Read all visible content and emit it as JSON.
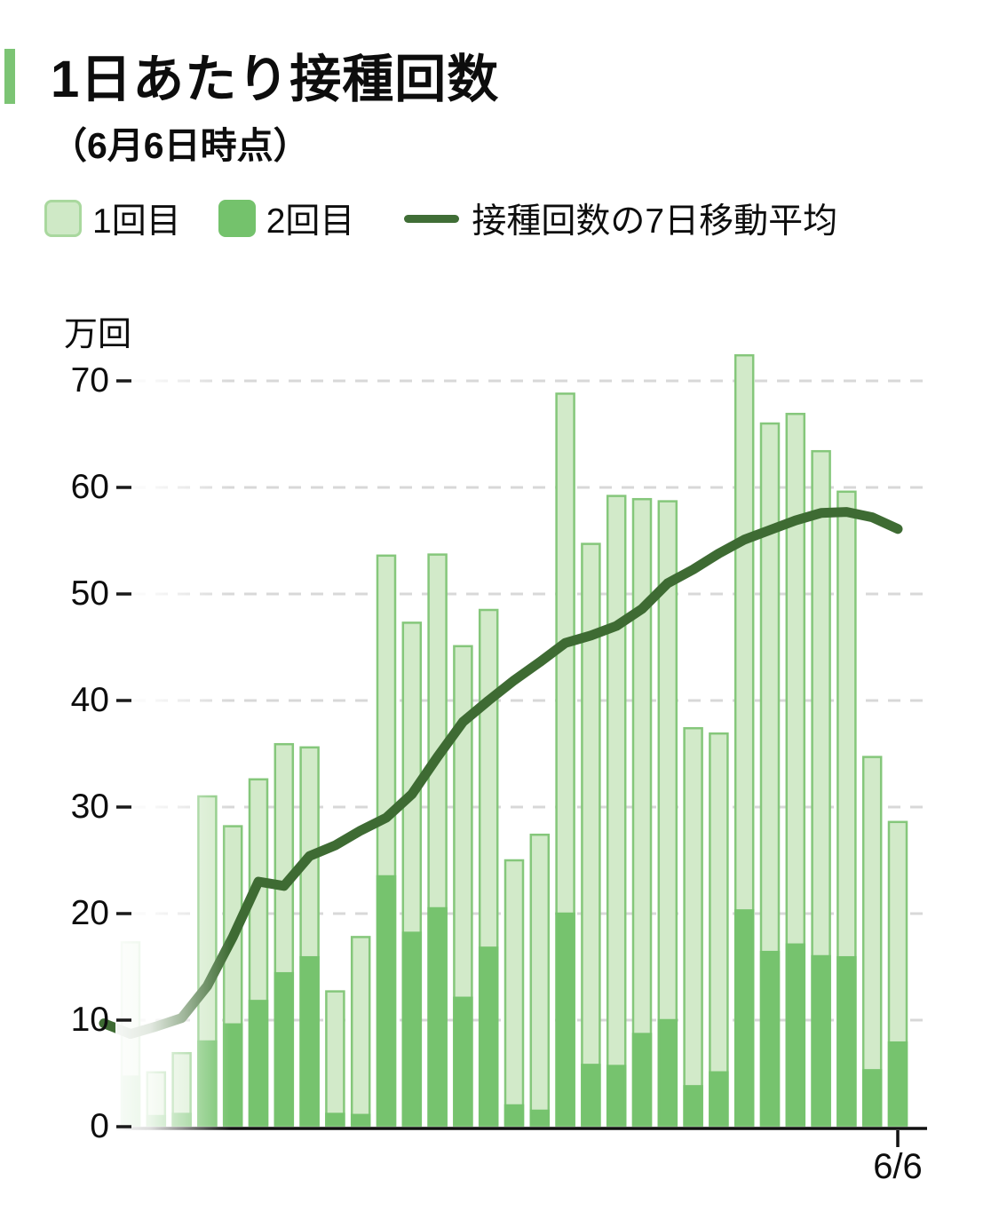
{
  "header": {
    "title": "1日あたり接種回数",
    "subtitle": "（6月6日時点）"
  },
  "legend": {
    "dose1_label": "1回目",
    "dose2_label": "2回目",
    "ma_label": "接種回数の7日移動平均"
  },
  "axis": {
    "unit_label": "万回",
    "x_end_label": "6/6",
    "yticks": [
      0,
      10,
      20,
      30,
      40,
      50,
      60,
      70
    ]
  },
  "colors": {
    "dose1_fill": "#d2eac9",
    "dose1_border": "#85c77b",
    "dose2_fill": "#76c36e",
    "ma_line": "#3e6b33",
    "accent": "#7cc474",
    "gridline": "#d8d8d8",
    "axis": "#111111"
  },
  "chart_data": {
    "type": "bar",
    "stacked": true,
    "title": "1日あたり接種回数（6月6日時点）",
    "ylabel": "万回",
    "ylim": [
      0,
      75
    ],
    "grid": "dashed horizontal",
    "legend_position": "top",
    "x_axis": {
      "n_bars": 31,
      "last_label": "6/6",
      "note": "only final day labeled"
    },
    "fade_left_edge": true,
    "series": [
      {
        "name": "1回目",
        "role": "bar-top-segment",
        "values": [
          12.6,
          4.1,
          5.7,
          23.0,
          18.6,
          20.8,
          21.5,
          19.7,
          11.5,
          16.7,
          30.1,
          29.1,
          33.2,
          33.0,
          31.7,
          23.0,
          25.9,
          48.8,
          48.9,
          53.5,
          50.2,
          48.7,
          33.6,
          31.8,
          52.1,
          49.6,
          49.8,
          47.4,
          43.7,
          29.4,
          20.7
        ]
      },
      {
        "name": "2回目",
        "role": "bar-bottom-segment",
        "values": [
          4.7,
          1.0,
          1.2,
          8.0,
          9.6,
          11.8,
          14.4,
          15.9,
          1.2,
          1.1,
          23.5,
          18.2,
          20.5,
          12.1,
          16.8,
          2.0,
          1.5,
          20.0,
          5.8,
          5.7,
          8.7,
          10.0,
          3.8,
          5.1,
          20.3,
          16.4,
          17.1,
          16.0,
          15.9,
          5.3,
          7.9
        ]
      },
      {
        "name": "接種回数の7日移動平均",
        "role": "line",
        "lead_value": 9.7,
        "values": [
          8.7,
          9.4,
          10.2,
          13.2,
          17.8,
          23.0,
          22.6,
          25.4,
          26.4,
          27.8,
          29.0,
          31.2,
          34.7,
          38.0,
          40.0,
          41.9,
          43.6,
          45.4,
          46.1,
          47.0,
          48.6,
          51.0,
          52.3,
          53.8,
          55.1,
          56.0,
          56.9,
          57.6,
          57.7,
          57.2,
          56.1
        ]
      }
    ]
  }
}
